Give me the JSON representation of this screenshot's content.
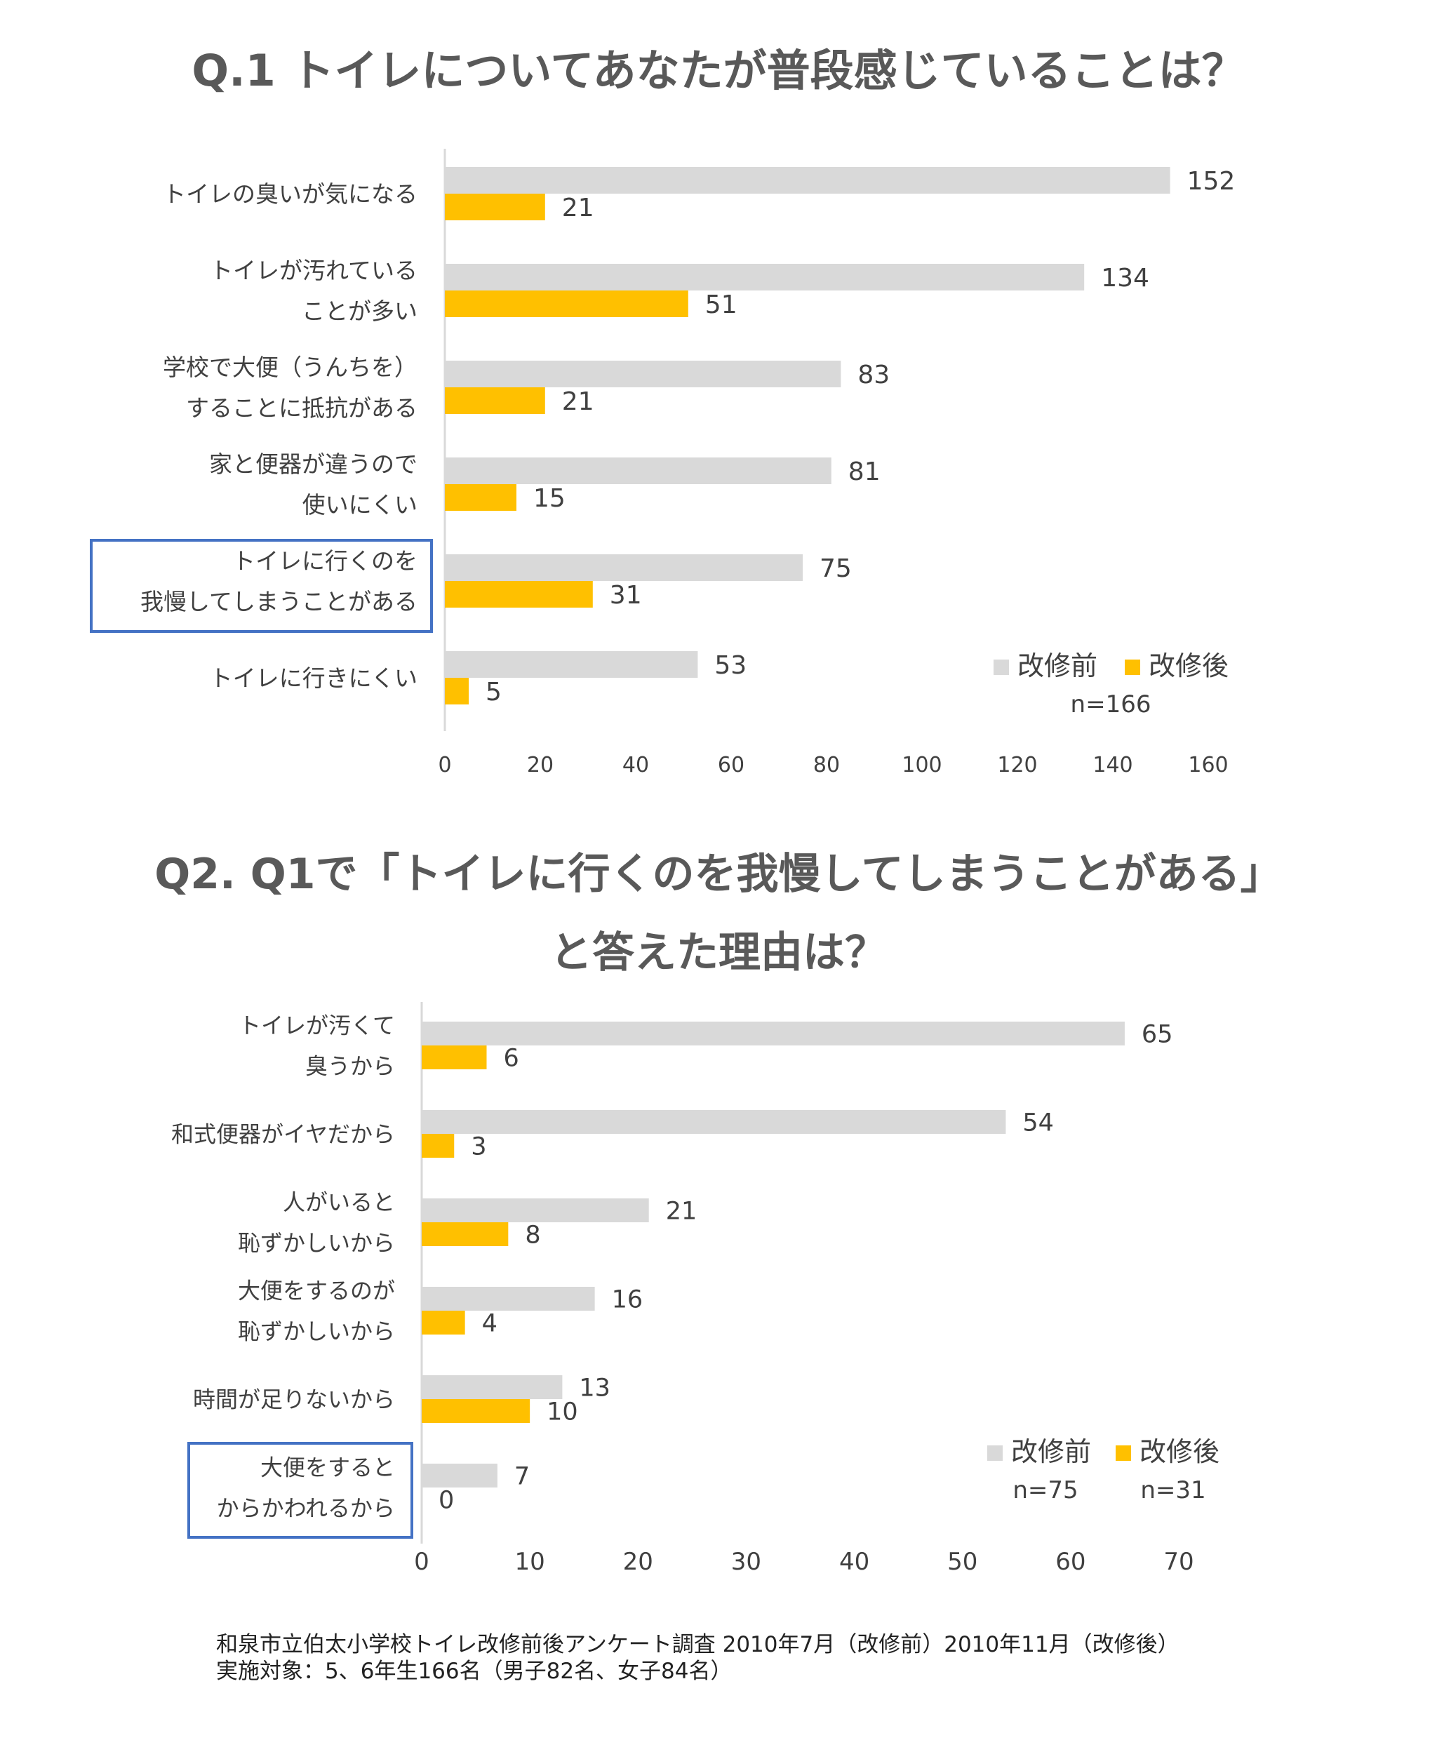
{
  "q1": {
    "title": "Q.1 トイレについてあなたが普段感じていることは？"
  },
  "q2": {
    "title_line1": "Q2. Q1で「トイレに行くのを我慢してしまうことがある」",
    "title_line2": "と答えた理由は？"
  },
  "chart_data": [
    {
      "type": "bar",
      "orientation": "horizontal",
      "categories": [
        [
          "トイレの臭いが気になる"
        ],
        [
          "トイレが汚れている",
          "ことが多い"
        ],
        [
          "学校で大便（うんちを）",
          "することに抵抗がある"
        ],
        [
          "家と便器が違うので",
          "使いにくい"
        ],
        [
          "トイレに行くのを",
          "我慢してしまうことがある"
        ],
        [
          "トイレに行きにくい"
        ]
      ],
      "series": [
        {
          "name": "改修前",
          "values": [
            152,
            134,
            83,
            81,
            75,
            53
          ]
        },
        {
          "name": "改修後",
          "values": [
            21,
            51,
            21,
            15,
            31,
            5
          ]
        }
      ],
      "xlim": [
        0,
        160
      ],
      "xticks": [
        "0",
        "20",
        "40",
        "60",
        "80",
        "100",
        "120",
        "140",
        "160"
      ],
      "highlighted_category_index": 4,
      "legend_position": "bottom-right",
      "legend_notes": [
        "n=166"
      ],
      "grid": false
    },
    {
      "type": "bar",
      "orientation": "horizontal",
      "categories": [
        [
          "トイレが汚くて",
          "臭うから"
        ],
        [
          "和式便器がイヤだから"
        ],
        [
          "人がいると",
          "恥ずかしいから"
        ],
        [
          "大便をするのが",
          "恥ずかしいから"
        ],
        [
          "時間が足りないから"
        ],
        [
          "大便をすると",
          "からかわれるから"
        ]
      ],
      "series": [
        {
          "name": "改修前",
          "values": [
            65,
            54,
            21,
            16,
            13,
            7
          ]
        },
        {
          "name": "改修後",
          "values": [
            6,
            3,
            8,
            4,
            10,
            0
          ]
        }
      ],
      "xlim": [
        0,
        70
      ],
      "xticks": [
        "0",
        "10",
        "20",
        "30",
        "40",
        "50",
        "60",
        "70"
      ],
      "highlighted_category_index": 5,
      "legend_position": "bottom-right",
      "legend_notes": [
        "n=75",
        "n=31"
      ],
      "grid": false
    }
  ],
  "colors": {
    "before": "#d9d9d9",
    "after": "#ffc000",
    "highlight_box": "#4472c4",
    "axis": "#d9d9d9"
  },
  "footer": {
    "line1": "和泉市立伯太小学校トイレ改修前後アンケート調査 2010年7月（改修前）2010年11月（改修後）",
    "line2": "実施対象：5、6年生166名（男子82名、女子84名）"
  }
}
